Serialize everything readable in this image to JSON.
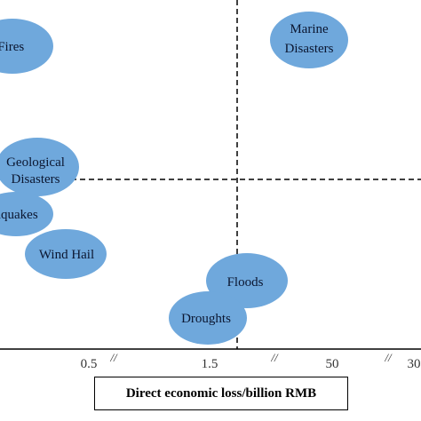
{
  "chart_data": {
    "type": "scatter",
    "title": "",
    "xlabel": "Direct economic loss/billion RMB",
    "ylabel": "",
    "x_ticks": [
      "0.5",
      "1.5",
      "50",
      "30"
    ],
    "x_axis_breaks": true,
    "reference_lines": "dashed quadrant lines",
    "points": [
      {
        "label": "est Fires",
        "lines": [
          "est Fires"
        ]
      },
      {
        "label": "Marine Disasters",
        "lines": [
          "Marine",
          "Disasters"
        ]
      },
      {
        "label": "Geological Disasters",
        "lines": [
          "Geological",
          "Disasters"
        ]
      },
      {
        "label": "thquakes",
        "lines": [
          "thquakes"
        ]
      },
      {
        "label": "Wind Hail",
        "lines": [
          "Wind Hail"
        ]
      },
      {
        "label": "Floods",
        "lines": [
          "Floods"
        ]
      },
      {
        "label": "Droughts",
        "lines": [
          "Droughts"
        ]
      }
    ],
    "colors": {
      "bubble": "#6fa8dc",
      "text": "#0b1630"
    }
  }
}
